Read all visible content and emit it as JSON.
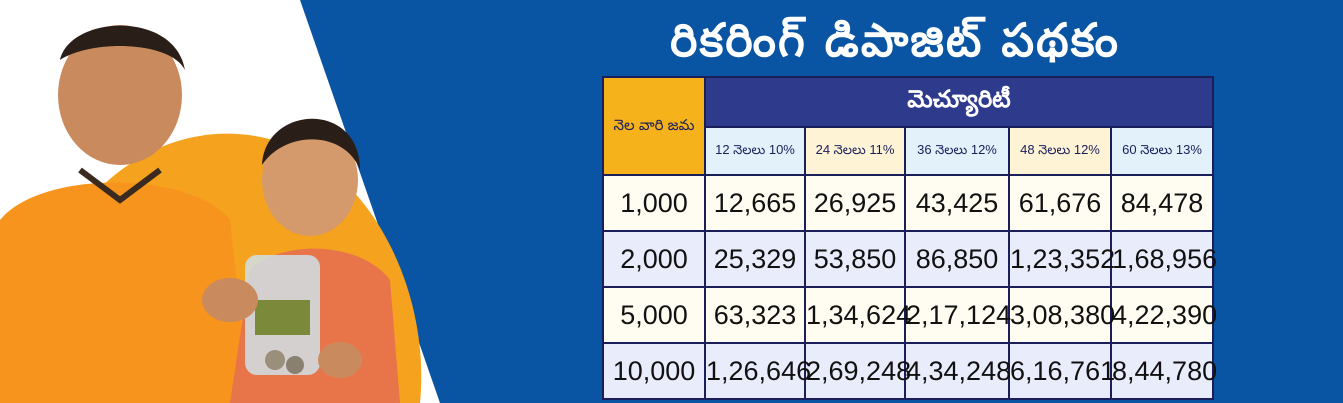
{
  "title": "రికరింగ్  డిపాజిట్ పథకం",
  "table": {
    "row_header": "నెల వారి జమ",
    "maturity_header": "మెచ్యూరిటీ",
    "columns": [
      "12 నెలలు 10%",
      "24 నెలలు 11%",
      "36 నెలలు 12%",
      "48 నెలలు 12%",
      "60 నెలలు 13%"
    ],
    "rows": [
      {
        "deposit": "1,000",
        "values": [
          "12,665",
          "26,925",
          "43,425",
          "61,676",
          "84,478"
        ]
      },
      {
        "deposit": "2,000",
        "values": [
          "25,329",
          "53,850",
          "86,850",
          "1,23,352",
          "1,68,956"
        ]
      },
      {
        "deposit": "5,000",
        "values": [
          "63,323",
          "1,34,624",
          "2,17,124",
          "3,08,380",
          "4,22,390"
        ]
      },
      {
        "deposit": "10,000",
        "values": [
          "1,26,646",
          "2,69,248",
          "4,34,248",
          "6,16,761",
          "8,44,780"
        ]
      }
    ]
  },
  "colors": {
    "background": "#0a55a3",
    "accent_orange": "#f6b21b",
    "header_navy": "#2e3a8c"
  }
}
